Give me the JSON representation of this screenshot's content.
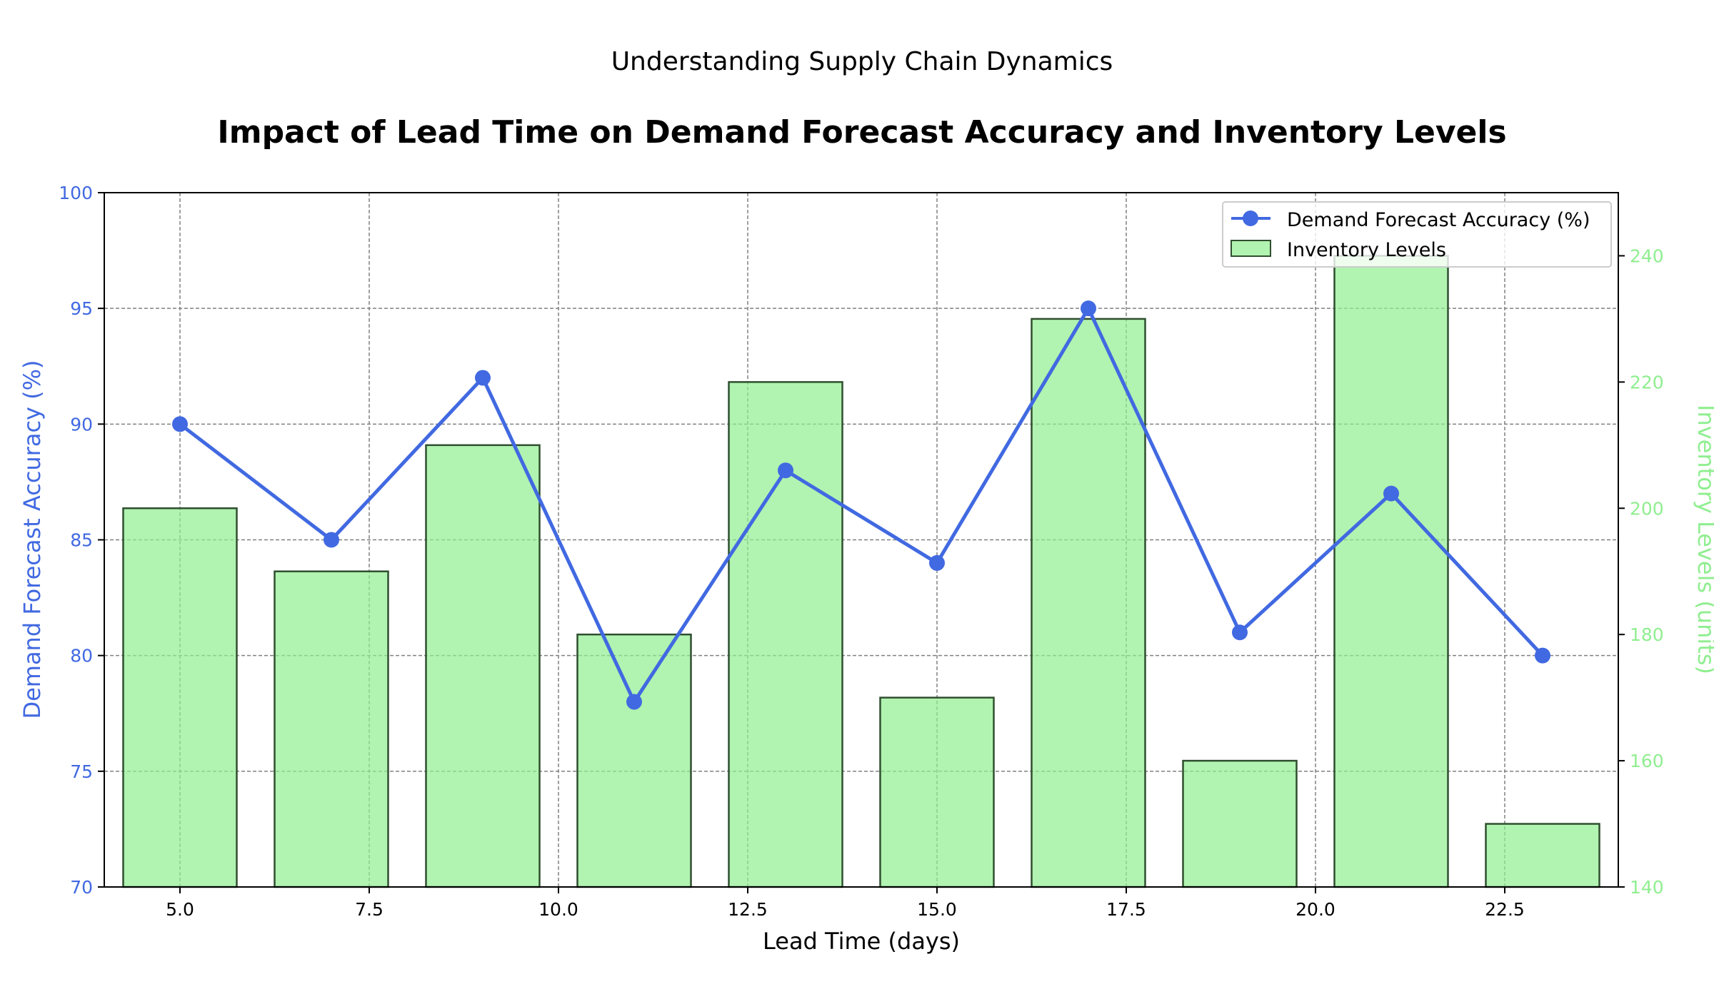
{
  "chart_data": {
    "type": "bar+line",
    "suptitle": "Understanding Supply Chain Dynamics",
    "title": "Impact of Lead Time on Demand Forecast Accuracy and Inventory Levels",
    "xlabel": "Lead Time (days)",
    "ylabel_left": "Demand Forecast Accuracy (%)",
    "ylabel_right": "Inventory Levels (units)",
    "x": [
      5,
      7,
      9,
      11,
      13,
      15,
      17,
      19,
      21,
      23
    ],
    "xlim": [
      4,
      24
    ],
    "x_ticks": [
      5.0,
      7.5,
      10.0,
      12.5,
      15.0,
      17.5,
      20.0,
      22.5
    ],
    "x_tick_labels": [
      "5.0",
      "7.5",
      "10.0",
      "12.5",
      "15.0",
      "17.5",
      "20.0",
      "22.5"
    ],
    "ylim_left": [
      70,
      100
    ],
    "y_ticks_left": [
      70,
      75,
      80,
      85,
      90,
      95,
      100
    ],
    "ylim_right": [
      140,
      250
    ],
    "y_ticks_right": [
      140,
      160,
      180,
      200,
      220,
      240
    ],
    "bar_width": 1.5,
    "series": [
      {
        "name": "Demand Forecast Accuracy (%)",
        "type": "line",
        "axis": "left",
        "color": "#4169E1",
        "values": [
          90,
          85,
          92,
          78,
          88,
          84,
          95,
          81,
          87,
          80
        ]
      },
      {
        "name": "Inventory Levels",
        "type": "bar",
        "axis": "right",
        "color": "#90EE90",
        "edge_color": "#2f4f2f",
        "values": [
          200,
          190,
          210,
          180,
          220,
          170,
          230,
          160,
          240,
          150
        ]
      }
    ],
    "grid": true,
    "legend_position": "top-right",
    "left_axis_color": "#4169E1",
    "right_axis_color": "#90EE90"
  }
}
